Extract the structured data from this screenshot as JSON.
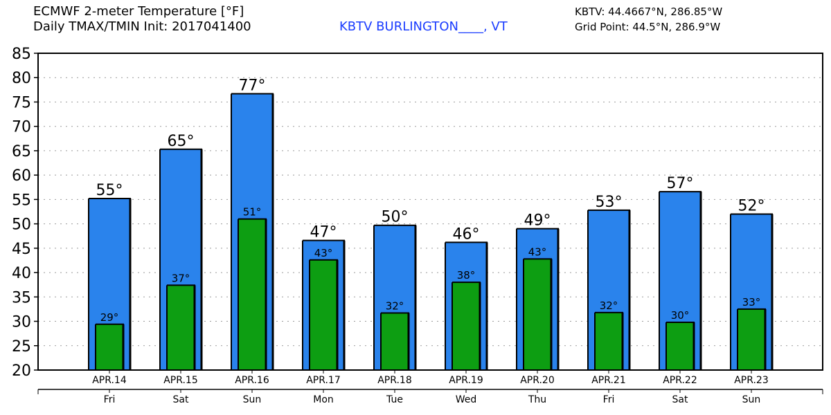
{
  "header": {
    "title_line1": "ECMWF 2-meter Temperature [°F]",
    "title_line2": "Daily TMAX/TMIN Init: 2017041400",
    "station": "KBTV BURLINGTON____, VT",
    "station_coords": "KBTV: 44.4667°N, 286.85°W",
    "grid_point": "Grid Point: 44.5°N, 286.9°W"
  },
  "colors": {
    "tmax": "#2a83ec",
    "tmin": "#0d9e12",
    "station": "#1a3cff"
  },
  "chart_data": {
    "type": "bar",
    "title": "ECMWF 2-meter Temperature [°F]",
    "ylim": [
      20,
      85
    ],
    "yticks": [
      20,
      25,
      30,
      35,
      40,
      45,
      50,
      55,
      60,
      65,
      70,
      75,
      80,
      85
    ],
    "grid": true,
    "categories": [
      "APR.14",
      "APR.15",
      "APR.16",
      "APR.17",
      "APR.18",
      "APR.19",
      "APR.20",
      "APR.21",
      "APR.22",
      "APR.23"
    ],
    "days": [
      "Fri",
      "Sat",
      "Sun",
      "Mon",
      "Tue",
      "Wed",
      "Thu",
      "Fri",
      "Sat",
      "Sun"
    ],
    "series": [
      {
        "name": "TMAX",
        "values": [
          55.2,
          65.3,
          76.7,
          46.6,
          49.7,
          46.2,
          49.0,
          52.8,
          56.6,
          52.0
        ],
        "labels": [
          "55°",
          "65°",
          "77°",
          "47°",
          "50°",
          "46°",
          "49°",
          "53°",
          "57°",
          "52°"
        ]
      },
      {
        "name": "TMIN",
        "values": [
          29.4,
          37.4,
          51.0,
          42.6,
          31.7,
          38.0,
          42.8,
          31.8,
          29.8,
          32.5
        ],
        "labels": [
          "29°",
          "37°",
          "51°",
          "43°",
          "32°",
          "38°",
          "43°",
          "32°",
          "30°",
          "33°"
        ]
      }
    ]
  }
}
